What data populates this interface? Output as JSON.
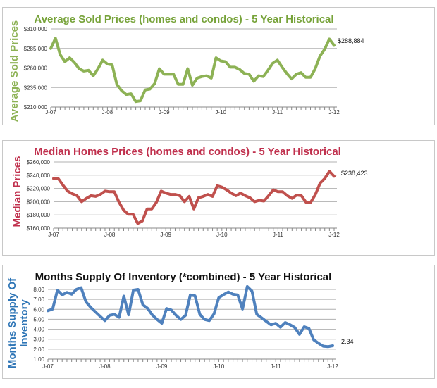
{
  "chart_data": [
    {
      "type": "line",
      "title": "Average Sold Prices (homes and condos) - 5 Year Historical",
      "ylabel": "Average Sold Prices",
      "xlabel": "",
      "x_tick_labels": [
        "J-07",
        "J-08",
        "J-09",
        "J-10",
        "J-11",
        "J-12"
      ],
      "y_tick_labels": [
        "$210,000",
        "$235,000",
        "$260,000",
        "$285,000",
        "$310,000"
      ],
      "ylim": [
        210000,
        310000
      ],
      "grid": true,
      "x_range": [
        "Jan 2007",
        "Jan 2012"
      ],
      "color": "#8DB255",
      "title_color": "#77A33A",
      "last_value_label": "$288,884",
      "values": [
        285000,
        298000,
        277000,
        268000,
        273000,
        267000,
        259000,
        256000,
        257000,
        250000,
        259000,
        270000,
        265000,
        264000,
        239000,
        231000,
        226000,
        227000,
        217000,
        218000,
        232000,
        233000,
        240000,
        259000,
        252000,
        252000,
        252000,
        239000,
        239000,
        259000,
        238000,
        247000,
        249000,
        250000,
        247000,
        273000,
        269000,
        268000,
        261000,
        261000,
        258000,
        253000,
        252000,
        243000,
        250000,
        249000,
        257000,
        266000,
        270000,
        261000,
        253000,
        246000,
        252000,
        254000,
        248000,
        248000,
        259000,
        275000,
        284000,
        297000,
        288884
      ]
    },
    {
      "type": "line",
      "title": "Median Homes Prices (homes and condos) - 5 Year Historical",
      "ylabel": "Median Prices",
      "xlabel": "",
      "x_tick_labels": [
        "J-07",
        "J-08",
        "J-09",
        "J-10",
        "J-11",
        "J-12"
      ],
      "y_tick_labels": [
        "$160,000",
        "$180,000",
        "$200,000",
        "$220,000",
        "$240,000",
        "$260,000"
      ],
      "ylim": [
        160000,
        260000
      ],
      "grid": true,
      "x_range": [
        "Jan 2007",
        "Jan 2012"
      ],
      "color": "#C0504D",
      "title_color": "#C0304D",
      "last_value_label": "$238,423",
      "values": [
        235000,
        235000,
        225000,
        216000,
        212000,
        209000,
        200000,
        205000,
        209000,
        208000,
        211000,
        216000,
        215000,
        215000,
        199000,
        187000,
        181000,
        181000,
        167000,
        171000,
        189000,
        189000,
        199000,
        216000,
        213000,
        211000,
        211000,
        209000,
        200000,
        208000,
        189000,
        206000,
        208000,
        211000,
        208000,
        224000,
        222000,
        218000,
        213000,
        209000,
        213000,
        209000,
        206000,
        200000,
        202000,
        201000,
        209000,
        218000,
        215000,
        215000,
        209000,
        205000,
        210000,
        209000,
        199000,
        199000,
        211000,
        228000,
        235000,
        246000,
        238423
      ]
    },
    {
      "type": "line",
      "title": "Months Supply Of Inventory (*combined) - 5 Year Historical",
      "ylabel": "Months Supply Of Inventory",
      "ylabel_lines": [
        "Months Supply Of",
        "Inventory"
      ],
      "xlabel": "",
      "x_tick_labels": [
        "J-07",
        "J-08",
        "J-09",
        "J-10",
        "J-11",
        "J-12"
      ],
      "y_tick_labels": [
        "1.00",
        "2.00",
        "3.00",
        "4.00",
        "5.00",
        "6.00",
        "7.00",
        "8.00"
      ],
      "ylim": [
        1,
        8
      ],
      "grid": true,
      "x_range": [
        "Jan 2007",
        "Jan 2012"
      ],
      "color": "#4F81BD",
      "title_color": "#111111",
      "ylabel_color": "#2E75B6",
      "last_value_label": "2.34",
      "values": [
        5.86,
        6.03,
        7.93,
        7.45,
        7.7,
        7.52,
        8.0,
        8.17,
        6.76,
        6.2,
        5.75,
        5.3,
        4.87,
        5.4,
        5.5,
        5.2,
        7.33,
        5.45,
        7.93,
        8.0,
        6.45,
        6.1,
        5.43,
        4.98,
        4.6,
        6.08,
        5.93,
        5.4,
        4.98,
        5.4,
        7.45,
        7.36,
        5.5,
        4.98,
        4.87,
        5.55,
        7.17,
        7.48,
        7.74,
        7.52,
        7.45,
        6.03,
        8.28,
        7.83,
        5.5,
        5.15,
        4.8,
        4.44,
        4.6,
        4.2,
        4.67,
        4.46,
        4.18,
        3.49,
        4.25,
        4.08,
        2.94,
        2.6,
        2.3,
        2.25,
        2.34
      ]
    }
  ]
}
